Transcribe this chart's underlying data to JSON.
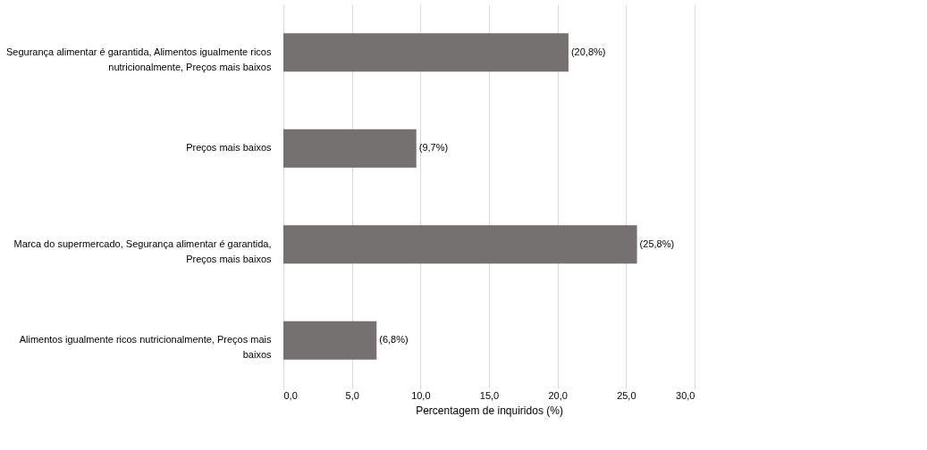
{
  "chart_data": {
    "type": "bar",
    "orientation": "horizontal",
    "xlabel": "Percentagem de inquiridos (%)",
    "categories": [
      "Segurança alimentar é garantida, Alimentos igualmente ricos nutricionalmente, Preços mais baixos",
      "Preços mais baixos",
      "Marca do supermercado, Segurança alimentar é garantida, Preços mais baixos",
      "Alimentos igualmente ricos nutricionalmente, Preços mais baixos"
    ],
    "values": [
      20.8,
      9.7,
      25.8,
      6.8
    ],
    "value_labels": [
      "(20,8%)",
      "(9,7%)",
      "(25,8%)",
      "(6,8%)"
    ],
    "color": "#767171",
    "xlim": [
      0,
      30
    ],
    "xticks": [
      {
        "value": 0,
        "label": "0,0"
      },
      {
        "value": 5,
        "label": "5,0"
      },
      {
        "value": 10,
        "label": "10,0"
      },
      {
        "value": 15,
        "label": "15,0"
      },
      {
        "value": 20,
        "label": "20,0"
      },
      {
        "value": 25,
        "label": "25,0"
      },
      {
        "value": 30,
        "label": "30,0"
      }
    ],
    "grid": "x"
  }
}
